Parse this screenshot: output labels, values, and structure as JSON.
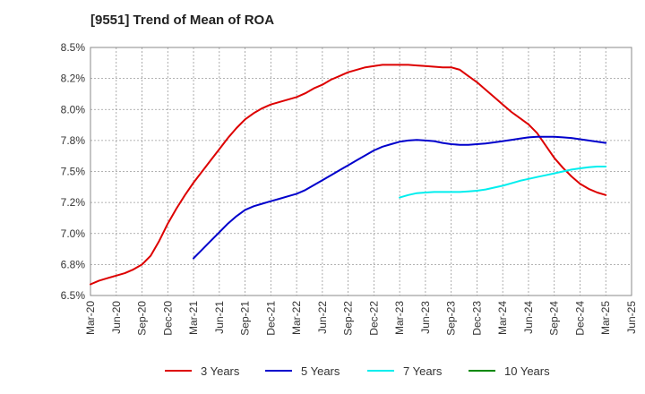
{
  "title": "[9551]  Trend of Mean of ROA",
  "chart_data": {
    "type": "line",
    "x_labels": [
      "Mar-20",
      "Jun-20",
      "Sep-20",
      "Dec-20",
      "Mar-21",
      "Jun-21",
      "Sep-21",
      "Dec-21",
      "Mar-22",
      "Jun-22",
      "Sep-22",
      "Dec-22",
      "Mar-23",
      "Jun-23",
      "Sep-23",
      "Dec-23",
      "Mar-24",
      "Jun-24",
      "Sep-24",
      "Dec-24",
      "Mar-25",
      "Jun-25"
    ],
    "y_tick_labels": [
      "8.5%",
      "8.2%",
      "8.0%",
      "7.8%",
      "7.5%",
      "7.2%",
      "7.0%",
      "6.8%",
      "6.5%"
    ],
    "y_tick_values": [
      8.5,
      8.25,
      8.0,
      7.75,
      7.5,
      7.25,
      7.0,
      6.75,
      6.5
    ],
    "ylim": [
      6.5,
      8.5
    ],
    "grid": true,
    "legend_position": "bottom",
    "series": [
      {
        "name": "3 Years",
        "color": "#dd0000",
        "x": [
          "Mar-20",
          "Apr-20",
          "May-20",
          "Jun-20",
          "Jul-20",
          "Aug-20",
          "Sep-20",
          "Oct-20",
          "Nov-20",
          "Dec-20",
          "Jan-21",
          "Feb-21",
          "Mar-21",
          "Apr-21",
          "May-21",
          "Jun-21",
          "Jul-21",
          "Aug-21",
          "Sep-21",
          "Oct-21",
          "Nov-21",
          "Dec-21",
          "Jan-22",
          "Feb-22",
          "Mar-22",
          "Apr-22",
          "May-22",
          "Jun-22",
          "Jul-22",
          "Aug-22",
          "Sep-22",
          "Oct-22",
          "Nov-22",
          "Dec-22",
          "Jan-23",
          "Feb-23",
          "Mar-23",
          "Apr-23",
          "May-23",
          "Jun-23",
          "Jul-23",
          "Aug-23",
          "Sep-23",
          "Oct-23",
          "Nov-23",
          "Dec-23",
          "Jan-24",
          "Feb-24",
          "Mar-24",
          "Apr-24",
          "May-24",
          "Jun-24",
          "Jul-24",
          "Aug-24",
          "Sep-24",
          "Oct-24",
          "Nov-24",
          "Dec-24",
          "Jan-25",
          "Feb-25",
          "Mar-25"
        ],
        "y": [
          6.59,
          6.62,
          6.64,
          6.66,
          6.68,
          6.71,
          6.75,
          6.82,
          6.94,
          7.08,
          7.2,
          7.31,
          7.41,
          7.5,
          7.59,
          7.68,
          7.77,
          7.85,
          7.92,
          7.97,
          8.01,
          8.04,
          8.06,
          8.08,
          8.1,
          8.13,
          8.17,
          8.2,
          8.24,
          8.27,
          8.3,
          8.32,
          8.34,
          8.35,
          8.36,
          8.36,
          8.36,
          8.36,
          8.355,
          8.35,
          8.345,
          8.34,
          8.34,
          8.32,
          8.27,
          8.22,
          8.16,
          8.1,
          8.04,
          7.98,
          7.93,
          7.88,
          7.81,
          7.71,
          7.61,
          7.53,
          7.46,
          7.4,
          7.36,
          7.33,
          7.31
        ]
      },
      {
        "name": "5 Years",
        "color": "#0000cc",
        "x": [
          "Mar-21",
          "Apr-21",
          "May-21",
          "Jun-21",
          "Jul-21",
          "Aug-21",
          "Sep-21",
          "Oct-21",
          "Nov-21",
          "Dec-21",
          "Jan-22",
          "Feb-22",
          "Mar-22",
          "Apr-22",
          "May-22",
          "Jun-22",
          "Jul-22",
          "Aug-22",
          "Sep-22",
          "Oct-22",
          "Nov-22",
          "Dec-22",
          "Jan-23",
          "Feb-23",
          "Mar-23",
          "Apr-23",
          "May-23",
          "Jun-23",
          "Jul-23",
          "Aug-23",
          "Sep-23",
          "Oct-23",
          "Nov-23",
          "Dec-23",
          "Jan-24",
          "Feb-24",
          "Mar-24",
          "Apr-24",
          "May-24",
          "Jun-24",
          "Jul-24",
          "Aug-24",
          "Sep-24",
          "Oct-24",
          "Nov-24",
          "Dec-24",
          "Jan-25",
          "Feb-25",
          "Mar-25"
        ],
        "y": [
          6.8,
          6.87,
          6.94,
          7.01,
          7.08,
          7.14,
          7.19,
          7.22,
          7.24,
          7.26,
          7.28,
          7.3,
          7.32,
          7.35,
          7.39,
          7.43,
          7.47,
          7.51,
          7.55,
          7.59,
          7.63,
          7.67,
          7.7,
          7.72,
          7.74,
          7.75,
          7.755,
          7.75,
          7.745,
          7.73,
          7.72,
          7.715,
          7.715,
          7.72,
          7.725,
          7.735,
          7.745,
          7.755,
          7.765,
          7.775,
          7.78,
          7.78,
          7.78,
          7.775,
          7.77,
          7.76,
          7.75,
          7.74,
          7.73
        ]
      },
      {
        "name": "7 Years",
        "color": "#00eeee",
        "x": [
          "Mar-23",
          "Apr-23",
          "May-23",
          "Jun-23",
          "Jul-23",
          "Aug-23",
          "Sep-23",
          "Oct-23",
          "Nov-23",
          "Dec-23",
          "Jan-24",
          "Feb-24",
          "Mar-24",
          "Apr-24",
          "May-24",
          "Jun-24",
          "Jul-24",
          "Aug-24",
          "Sep-24",
          "Oct-24",
          "Nov-24",
          "Dec-24",
          "Jan-25",
          "Feb-25",
          "Mar-25"
        ],
        "y": [
          7.29,
          7.31,
          7.325,
          7.33,
          7.335,
          7.335,
          7.335,
          7.335,
          7.34,
          7.345,
          7.355,
          7.37,
          7.385,
          7.405,
          7.425,
          7.44,
          7.455,
          7.47,
          7.485,
          7.5,
          7.515,
          7.525,
          7.535,
          7.54,
          7.54
        ]
      },
      {
        "name": "10 Years",
        "color": "#008800",
        "x": [],
        "y": []
      }
    ]
  }
}
